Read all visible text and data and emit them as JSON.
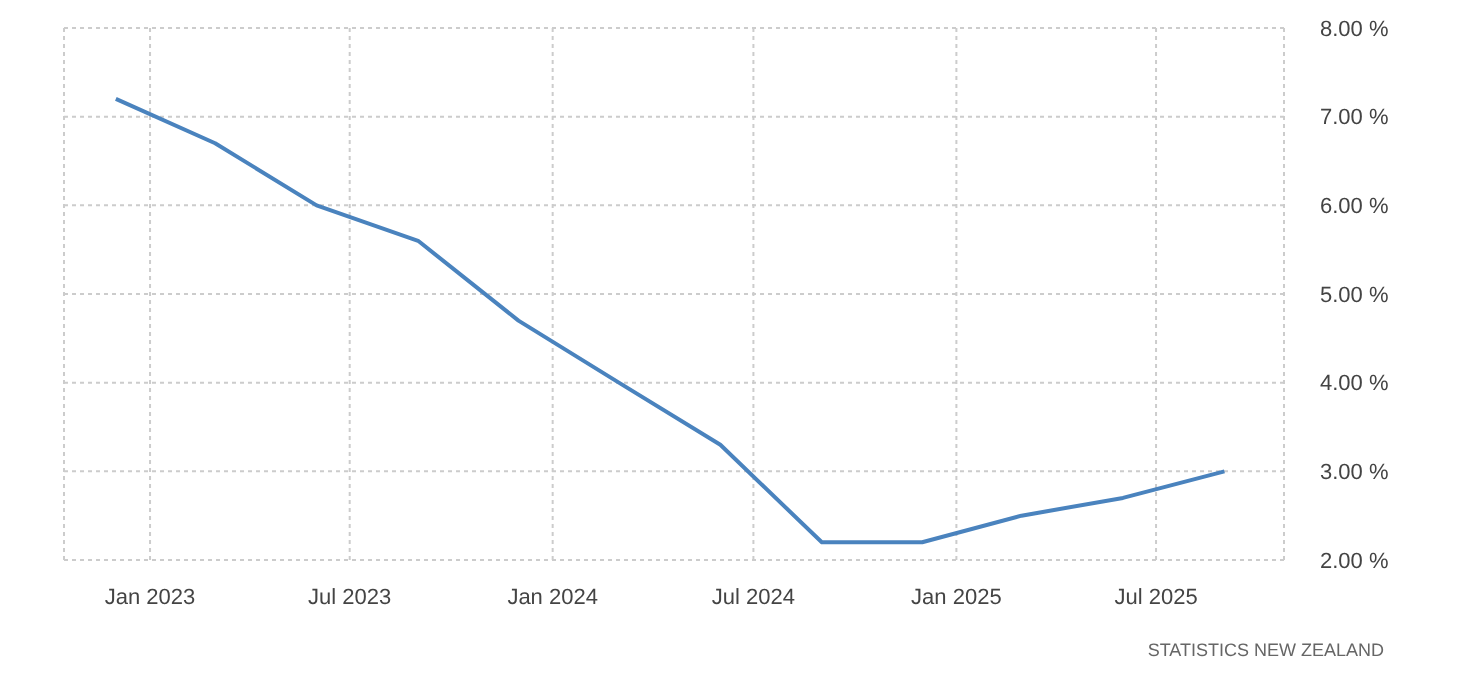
{
  "chart_data": {
    "type": "line",
    "x": [
      "2022-12",
      "2023-03",
      "2023-06",
      "2023-09",
      "2023-12",
      "2024-03",
      "2024-06",
      "2024-09",
      "2024-12",
      "2025-03",
      "2025-06",
      "2025-09"
    ],
    "series": [
      {
        "color": "#4a83be",
        "values": [
          7.2,
          6.7,
          6.0,
          5.6,
          4.7,
          4.0,
          3.3,
          2.2,
          2.2,
          2.5,
          2.7,
          3.0
        ]
      }
    ],
    "xlim": [
      "2022-10-15",
      "2025-10-25"
    ],
    "xticks": [
      {
        "value": "2023-01",
        "label": "Jan 2023"
      },
      {
        "value": "2023-07",
        "label": "Jul 2023"
      },
      {
        "value": "2024-01",
        "label": "Jan 2024"
      },
      {
        "value": "2024-07",
        "label": "Jul 2024"
      },
      {
        "value": "2025-01",
        "label": "Jan 2025"
      },
      {
        "value": "2025-07",
        "label": "Jul 2025"
      }
    ],
    "ylim": [
      2,
      8
    ],
    "yticks": [
      {
        "value": 2,
        "label": "2.00 %"
      },
      {
        "value": 3,
        "label": "3.00 %"
      },
      {
        "value": 4,
        "label": "4.00 %"
      },
      {
        "value": 5,
        "label": "5.00 %"
      },
      {
        "value": 6,
        "label": "6.00 %"
      },
      {
        "value": 7,
        "label": "7.00 %"
      },
      {
        "value": 8,
        "label": "8.00 %"
      }
    ],
    "grid": true,
    "marker": "none",
    "line_style": "solid",
    "legend": false,
    "annotations": [
      "STATISTICS NEW ZEALAND"
    ]
  }
}
